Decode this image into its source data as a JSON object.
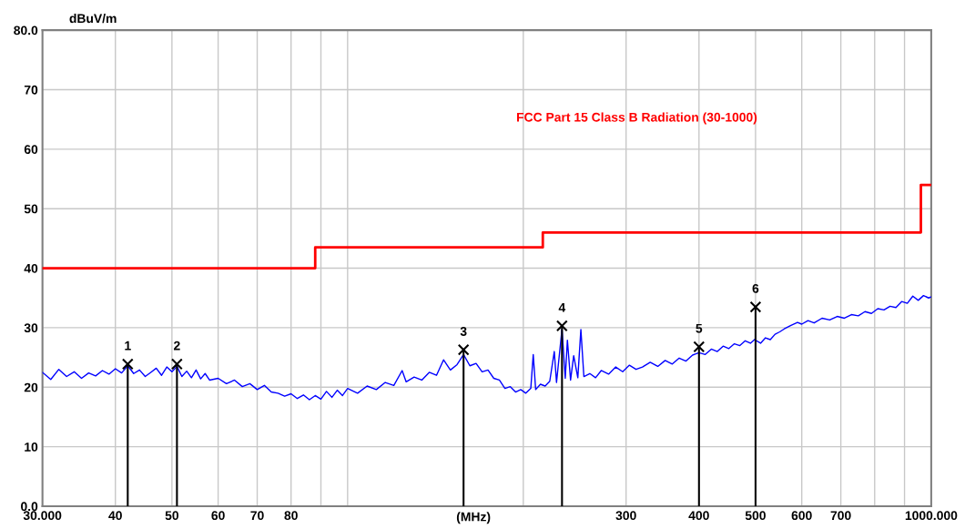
{
  "chart_data": {
    "type": "line",
    "xlabel": "(MHz)",
    "ylabel": "dBuV/m",
    "log": "x",
    "xlim": [
      30,
      1000
    ],
    "ylim": [
      0,
      80
    ],
    "xticks": [
      {
        "value": 30,
        "label": "30.000"
      },
      40,
      50,
      60,
      70,
      80,
      {
        "value": 90,
        "label": null
      },
      {
        "value": 100,
        "label": null
      },
      {
        "value": 200,
        "label": null
      },
      300,
      400,
      500,
      600,
      700,
      {
        "value": 800,
        "label": null
      },
      {
        "value": 900,
        "label": null
      },
      {
        "value": 1000,
        "label": "1000.000"
      }
    ],
    "yticks": [
      {
        "value": 0,
        "label": "0.0"
      },
      10,
      20,
      30,
      40,
      50,
      60,
      70,
      {
        "value": 80,
        "label": "80.0"
      }
    ],
    "grid": true,
    "legend": false,
    "series": [
      {
        "type": "step",
        "name": "FCC Part 15 Class B Radiation (30-1000)",
        "color": "#ff0000",
        "x": [
          30,
          88,
          216,
          960,
          1000
        ],
        "values": [
          40,
          43.5,
          46,
          54,
          54
        ]
      },
      {
        "color": "#0000ff",
        "x": [
          30,
          31,
          32,
          33,
          34,
          35,
          36,
          37,
          38,
          39,
          40,
          41,
          42,
          43,
          44,
          45,
          46,
          47,
          48,
          49,
          50,
          51,
          52,
          53,
          54,
          55,
          56,
          57,
          58,
          60,
          62,
          64,
          66,
          68,
          70,
          72,
          74,
          76,
          78,
          80,
          82,
          84,
          86,
          88,
          90,
          92,
          94,
          96,
          98,
          100,
          104,
          108,
          112,
          116,
          120,
          124,
          126,
          130,
          134,
          138,
          142,
          146,
          150,
          154,
          158,
          162,
          166,
          170,
          174,
          178,
          182,
          186,
          190,
          194,
          198,
          202,
          206,
          208,
          210,
          214,
          218,
          222,
          226,
          228,
          233,
          236,
          238,
          241,
          244,
          248,
          251,
          254,
          260,
          266,
          272,
          280,
          288,
          296,
          304,
          312,
          320,
          330,
          340,
          350,
          360,
          370,
          380,
          390,
          400,
          410,
          420,
          430,
          440,
          450,
          460,
          470,
          480,
          490,
          498,
          500,
          502,
          510,
          520,
          530,
          540,
          550,
          560,
          575,
          590,
          600,
          615,
          630,
          650,
          670,
          690,
          710,
          730,
          750,
          770,
          790,
          810,
          830,
          850,
          870,
          890,
          910,
          930,
          950,
          970,
          990,
          1000
        ],
        "values": [
          22.5,
          21.3,
          23.0,
          21.8,
          22.6,
          21.5,
          22.4,
          21.9,
          22.8,
          22.2,
          23.1,
          22.4,
          23.6,
          22.3,
          22.9,
          21.8,
          22.5,
          23.2,
          22.0,
          23.4,
          22.6,
          23.5,
          21.8,
          22.7,
          21.6,
          22.9,
          21.4,
          22.3,
          21.2,
          21.5,
          20.6,
          21.2,
          20.1,
          20.6,
          19.6,
          20.3,
          19.2,
          19.0,
          18.5,
          18.9,
          18.1,
          18.7,
          17.9,
          18.6,
          18.0,
          19.3,
          18.3,
          19.5,
          18.6,
          19.8,
          19.0,
          20.2,
          19.6,
          20.8,
          20.3,
          22.8,
          20.9,
          21.7,
          21.2,
          22.5,
          22.0,
          24.6,
          22.9,
          23.8,
          25.5,
          23.6,
          24.0,
          22.6,
          22.9,
          21.5,
          21.2,
          19.8,
          20.1,
          19.2,
          19.6,
          19.0,
          19.8,
          25.5,
          19.6,
          20.5,
          20.2,
          21.0,
          26.0,
          20.8,
          29.8,
          21.5,
          27.9,
          21.2,
          25.3,
          21.6,
          29.7,
          21.8,
          22.3,
          21.6,
          22.8,
          22.2,
          23.4,
          22.6,
          23.7,
          23.0,
          23.4,
          24.2,
          23.5,
          24.5,
          23.9,
          24.9,
          24.4,
          25.4,
          25.8,
          25.5,
          26.4,
          26.0,
          26.9,
          26.5,
          27.3,
          27.0,
          27.8,
          27.4,
          28.0,
          null,
          27.8,
          27.4,
          28.3,
          28.0,
          28.9,
          29.3,
          29.8,
          30.4,
          30.9,
          30.6,
          31.2,
          30.8,
          31.6,
          31.3,
          31.9,
          31.6,
          32.2,
          32.0,
          32.7,
          32.4,
          33.2,
          33.0,
          33.6,
          33.4,
          34.4,
          34.1,
          35.3,
          34.6,
          35.4,
          35.0,
          35.2
        ]
      },
      {
        "type": "lollipop",
        "color": "#000000",
        "marker": "cross",
        "x": [
          42,
          51,
          158,
          233,
          400,
          500
        ],
        "values": [
          23.9,
          23.9,
          26.3,
          30.3,
          26.8,
          33.5
        ]
      }
    ],
    "annotations": [
      {
        "text": "1",
        "x": 42,
        "y": 23.9
      },
      {
        "text": "2",
        "x": 51,
        "y": 23.9
      },
      {
        "text": "3",
        "x": 158,
        "y": 26.3
      },
      {
        "text": "4",
        "x": 233,
        "y": 30.3
      },
      {
        "text": "5",
        "x": 400,
        "y": 26.8
      },
      {
        "text": "6",
        "x": 500,
        "y": 33.5
      }
    ]
  }
}
